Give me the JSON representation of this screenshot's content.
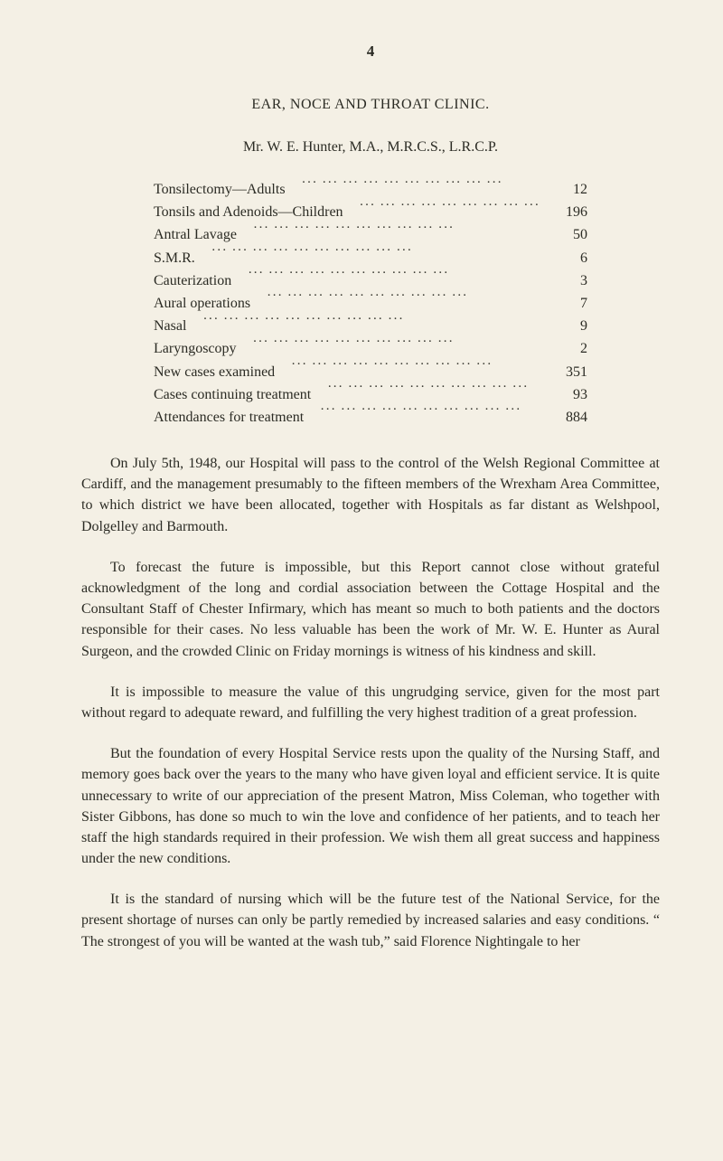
{
  "page_number": "4",
  "section_title": "EAR, NOCE AND THROAT CLINIC.",
  "subtitle": "Mr. W. E. Hunter, M.A., M.R.C.S., L.R.C.P.",
  "stats": [
    {
      "label": "Tonsilectomy—Adults",
      "value": "12"
    },
    {
      "label": "Tonsils and Adenoids—Children",
      "value": "196"
    },
    {
      "label": "Antral Lavage",
      "value": "50"
    },
    {
      "label": "S.M.R.",
      "value": "6"
    },
    {
      "label": "Cauterization",
      "value": "3"
    },
    {
      "label": "Aural operations",
      "value": "7"
    },
    {
      "label": "Nasal",
      "value": "9"
    },
    {
      "label": "Laryngoscopy",
      "value": "2"
    },
    {
      "label": "New cases examined",
      "value": "351"
    },
    {
      "label": "Cases continuing treatment",
      "value": "93"
    },
    {
      "label": "Attendances for treatment",
      "value": "884"
    }
  ],
  "paragraphs": {
    "p1": "On July 5th, 1948, our Hospital will pass to the control of the Welsh Regional Committee at Cardiff, and the management presumably to the fifteen members of the Wrexham Area Committee, to which district we have been allocated, together with Hospitals as far distant as Welshpool, Dolgelley and Barmouth.",
    "p2": "To forecast the future is impossible, but this Report cannot close without grateful acknowledgment of the long and cordial association between the Cottage Hospital and the Consultant Staff of Chester Infirm­ary, which has meant so much to both patients and the doctors respon­sible for their cases. No less valuable has been the work of Mr. W. E. Hunter as Aural Surgeon, and the crowded Clinic on Friday mornings is witness of his kindness and skill.",
    "p3": "It is impossible to measure the value of this ungrudging service, given for the most part without regard to adequate reward, and fulfilling the very highest tradition of a great profession.",
    "p4": "But the foundation of every Hospital Service rests upon the quality of the Nursing Staff, and memory goes back over the years to the many who have given loyal and efficient service. It is quite unnecessary to write of our appreciation of the present Matron, Miss Coleman, who together with Sister Gibbons, has done so much to win the love and confidence of her patients, and to teach her staff the high standards required in their pro­fession. We wish them all great success and happiness under the new conditions.",
    "p5": "It is the standard of nursing which will be the future test of the National Service, for the present shortage of nurses can only be partly remedied by increased salaries and easy conditions. “ The strongest of you will be wanted at the wash tub,” said Florence Nightingale to her"
  }
}
